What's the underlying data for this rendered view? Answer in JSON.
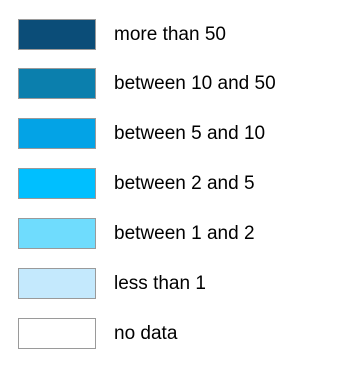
{
  "legend": {
    "items": [
      {
        "label": "more than 50",
        "color": "#0b4d78"
      },
      {
        "label": "between 10 and 50",
        "color": "#0b7fad"
      },
      {
        "label": "between 5 and 10",
        "color": "#03a3e6"
      },
      {
        "label": "between 2 and 5",
        "color": "#00bfff"
      },
      {
        "label": "between 1 and 2",
        "color": "#6fdcfd"
      },
      {
        "label": "less than 1",
        "color": "#c4e9fd"
      },
      {
        "label": "no data",
        "color": "#ffffff"
      }
    ]
  }
}
